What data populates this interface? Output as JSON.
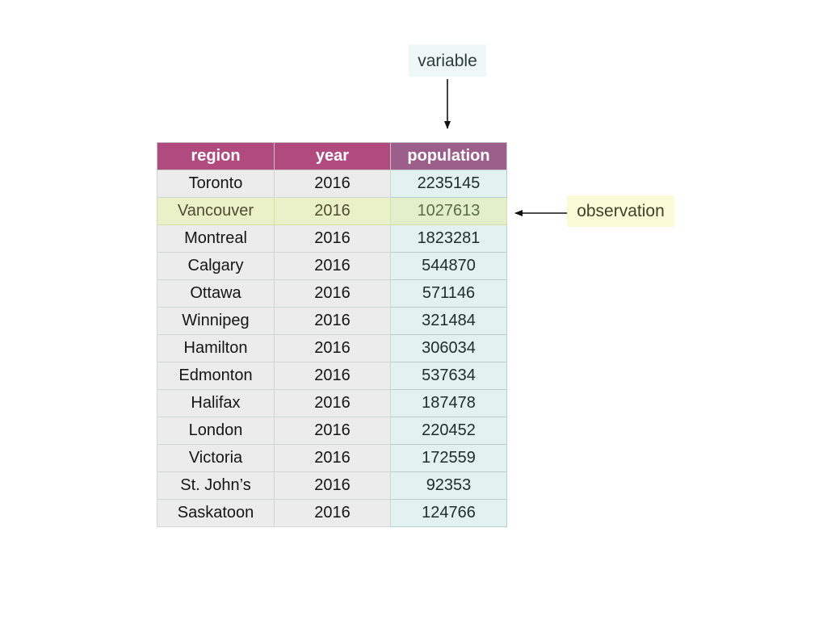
{
  "callouts": {
    "variable": "variable",
    "observation": "observation"
  },
  "table": {
    "headers": [
      "region",
      "year",
      "population"
    ],
    "highlighted_row": 1,
    "rows": [
      [
        "Toronto",
        "2016",
        "2235145"
      ],
      [
        "Vancouver",
        "2016",
        "1027613"
      ],
      [
        "Montreal",
        "2016",
        "1823281"
      ],
      [
        "Calgary",
        "2016",
        "544870"
      ],
      [
        "Ottawa",
        "2016",
        "571146"
      ],
      [
        "Winnipeg",
        "2016",
        "321484"
      ],
      [
        "Hamilton",
        "2016",
        "306034"
      ],
      [
        "Edmonton",
        "2016",
        "537634"
      ],
      [
        "Halifax",
        "2016",
        "187478"
      ],
      [
        "London",
        "2016",
        "220452"
      ],
      [
        "Victoria",
        "2016",
        "172559"
      ],
      [
        "St. John’s",
        "2016",
        "92353"
      ],
      [
        "Saskatoon",
        "2016",
        "124766"
      ]
    ]
  },
  "colors": {
    "header": "#b14b7f",
    "header_variable": "#9c5e8a",
    "cell": "#ececec",
    "variable_column": "#e2f2f0",
    "observation_row": "#eaf0c8",
    "variable_callout_bg": "#eef8f7",
    "observation_callout_bg": "#fbfbd8"
  }
}
